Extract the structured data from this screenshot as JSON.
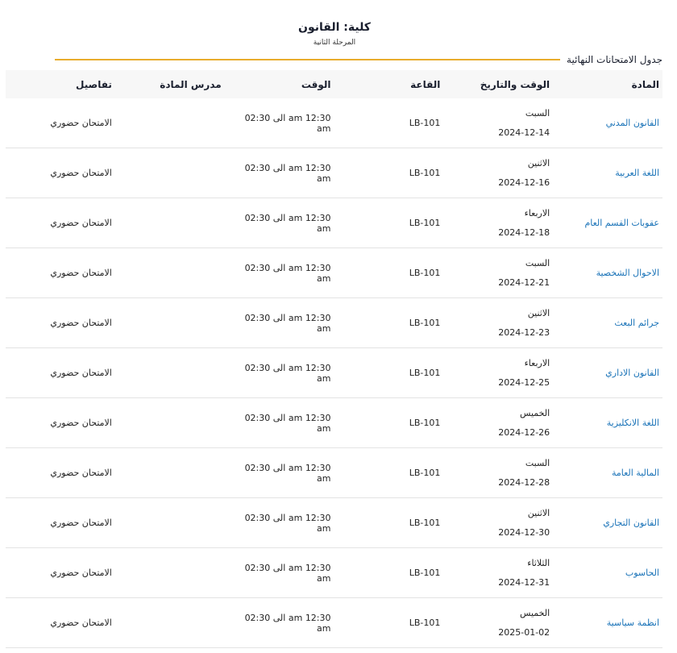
{
  "header": {
    "title": "كلية: القانون",
    "subtitle": "المرحلة الثانية"
  },
  "section": {
    "title": "جدول الامتحانات النهائية",
    "accent_color": "#e8ac2c"
  },
  "table": {
    "columns": [
      "المادة",
      "الوقت والتاريخ",
      "القاعة",
      "الوقت",
      "مدرس المادة",
      "تفاصيل"
    ],
    "rows": [
      {
        "subject": "القانون المدني",
        "day": "السبت",
        "date": "2024-12-14",
        "room": "LB-101",
        "time": "12:30 am الى 02:30 am",
        "teacher": "",
        "details": "الامتحان حضوري"
      },
      {
        "subject": "اللغة العربية",
        "day": "الاثنين",
        "date": "2024-12-16",
        "room": "LB-101",
        "time": "12:30 am الى 02:30 am",
        "teacher": "",
        "details": "الامتحان حضوري"
      },
      {
        "subject": "عقوبات القسم العام",
        "day": "الاربعاء",
        "date": "2024-12-18",
        "room": "LB-101",
        "time": "12:30 am الى 02:30 am",
        "teacher": "",
        "details": "الامتحان حضوري"
      },
      {
        "subject": "الاحوال الشخصية",
        "day": "السبت",
        "date": "2024-12-21",
        "room": "LB-101",
        "time": "12:30 am الى 02:30 am",
        "teacher": "",
        "details": "الامتحان حضوري"
      },
      {
        "subject": "جرائم البعث",
        "day": "الاثنين",
        "date": "2024-12-23",
        "room": "LB-101",
        "time": "12:30 am الى 02:30 am",
        "teacher": "",
        "details": "الامتحان حضوري"
      },
      {
        "subject": "القانون الاداري",
        "day": "الاربعاء",
        "date": "2024-12-25",
        "room": "LB-101",
        "time": "12:30 am الى 02:30 am",
        "teacher": "",
        "details": "الامتحان حضوري"
      },
      {
        "subject": "اللغة الانكليزية",
        "day": "الخميس",
        "date": "2024-12-26",
        "room": "LB-101",
        "time": "12:30 am الى 02:30 am",
        "teacher": "",
        "details": "الامتحان حضوري"
      },
      {
        "subject": "المالية العامة",
        "day": "السبت",
        "date": "2024-12-28",
        "room": "LB-101",
        "time": "12:30 am الى 02:30 am",
        "teacher": "",
        "details": "الامتحان حضوري"
      },
      {
        "subject": "القانون التجاري",
        "day": "الاثنين",
        "date": "2024-12-30",
        "room": "LB-101",
        "time": "12:30 am الى 02:30 am",
        "teacher": "",
        "details": "الامتحان حضوري"
      },
      {
        "subject": "الحاسوب",
        "day": "الثلاثاء",
        "date": "2024-12-31",
        "room": "LB-101",
        "time": "12:30 am الى 02:30 am",
        "teacher": "",
        "details": "الامتحان حضوري"
      },
      {
        "subject": "انظمة سياسية",
        "day": "الخميس",
        "date": "2025-01-02",
        "room": "LB-101",
        "time": "12:30 am الى 02:30 am",
        "teacher": "",
        "details": "الامتحان حضوري"
      }
    ]
  }
}
